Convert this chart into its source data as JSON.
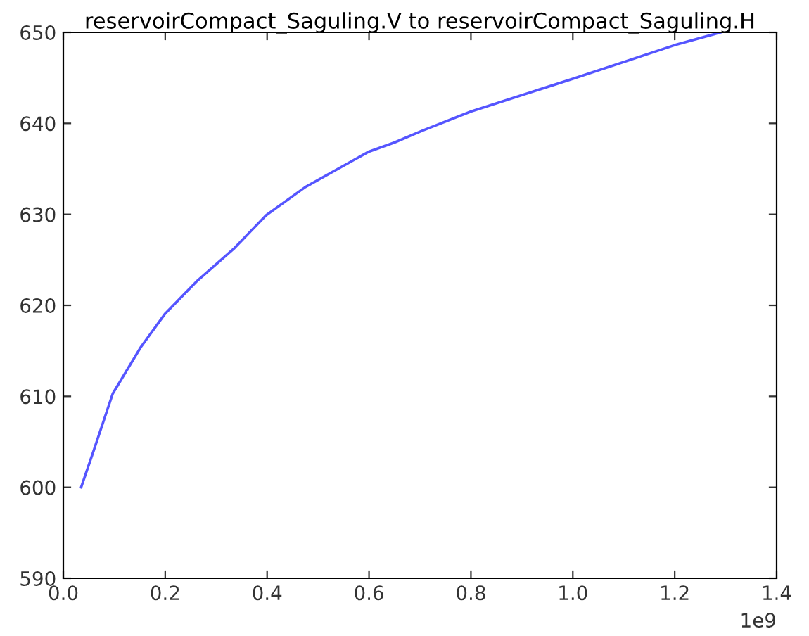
{
  "chart_data": {
    "type": "line",
    "title": "reservoirCompact_Saguling.V to reservoirCompact_Saguling.H",
    "x": [
      0.035,
      0.06,
      0.097,
      0.152,
      0.2,
      0.263,
      0.336,
      0.398,
      0.475,
      0.6,
      0.65,
      0.705,
      0.8,
      1.0,
      1.2,
      1.29
    ],
    "series": [
      {
        "color": "#5555ff",
        "values": [
          600,
          604.1,
          610.3,
          615.4,
          619.1,
          622.7,
          626.3,
          629.9,
          633.0,
          636.9,
          637.9,
          639.2,
          641.3,
          644.9,
          648.6,
          650
        ]
      }
    ],
    "xlim": [
      0,
      1.4
    ],
    "xticks": [
      {
        "value": 0,
        "label": "0.0"
      },
      0.2,
      0.4,
      0.6,
      0.8,
      {
        "value": 1,
        "label": "1.0"
      },
      1.2,
      1.4
    ],
    "annotations": [
      "1e9"
    ],
    "ylim": [
      590,
      650
    ],
    "yticks": [
      590,
      600,
      610,
      620,
      630,
      640,
      650
    ],
    "grid": false,
    "legend": false
  }
}
